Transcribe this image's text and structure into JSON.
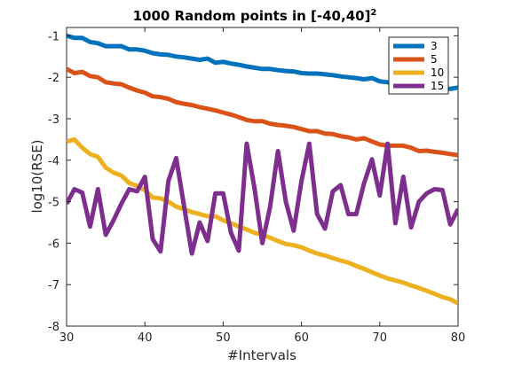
{
  "chart_data": {
    "type": "line",
    "title": "1000 Random points in [-40,40]",
    "title_superscript": "2",
    "xlabel": "#Intervals",
    "ylabel": "log10(RSE)",
    "xlim": [
      30,
      80
    ],
    "ylim": [
      -8,
      -0.8
    ],
    "xticks": [
      30,
      40,
      50,
      60,
      70,
      80
    ],
    "yticks": [
      -1,
      -2,
      -3,
      -4,
      -5,
      -6,
      -7,
      -8
    ],
    "grid": false,
    "legend_position": "top-right",
    "x": [
      30,
      31,
      32,
      33,
      34,
      35,
      36,
      37,
      38,
      39,
      40,
      41,
      42,
      43,
      44,
      45,
      46,
      47,
      48,
      49,
      50,
      51,
      52,
      53,
      54,
      55,
      56,
      57,
      58,
      59,
      60,
      61,
      62,
      63,
      64,
      65,
      66,
      67,
      68,
      69,
      70,
      71,
      72,
      73,
      74,
      75,
      76,
      77,
      78,
      79,
      80
    ],
    "series": [
      {
        "name": "3",
        "color": "#0072BD",
        "values": [
          -1.0,
          -1.05,
          -1.05,
          -1.15,
          -1.18,
          -1.25,
          -1.25,
          -1.25,
          -1.33,
          -1.33,
          -1.36,
          -1.42,
          -1.45,
          -1.46,
          -1.5,
          -1.52,
          -1.55,
          -1.58,
          -1.55,
          -1.65,
          -1.63,
          -1.67,
          -1.7,
          -1.74,
          -1.77,
          -1.8,
          -1.8,
          -1.83,
          -1.85,
          -1.86,
          -1.9,
          -1.91,
          -1.91,
          -1.93,
          -1.95,
          -1.98,
          -2.0,
          -2.02,
          -2.05,
          -2.02,
          -2.1,
          -2.12,
          -2.18,
          -2.12,
          -2.18,
          -2.2,
          -2.22,
          -2.25,
          -2.28,
          -2.28,
          -2.25
        ]
      },
      {
        "name": "5",
        "color": "#D95319",
        "values": [
          -1.8,
          -1.9,
          -1.87,
          -1.97,
          -2.0,
          -2.12,
          -2.15,
          -2.17,
          -2.25,
          -2.32,
          -2.37,
          -2.46,
          -2.48,
          -2.52,
          -2.6,
          -2.64,
          -2.67,
          -2.72,
          -2.76,
          -2.8,
          -2.85,
          -2.9,
          -2.96,
          -3.03,
          -3.06,
          -3.06,
          -3.12,
          -3.15,
          -3.17,
          -3.2,
          -3.25,
          -3.3,
          -3.3,
          -3.36,
          -3.37,
          -3.42,
          -3.45,
          -3.5,
          -3.47,
          -3.55,
          -3.62,
          -3.65,
          -3.65,
          -3.65,
          -3.7,
          -3.78,
          -3.77,
          -3.8,
          -3.82,
          -3.85,
          -3.88
        ]
      },
      {
        "name": "10",
        "color": "#EDB120",
        "values": [
          -3.55,
          -3.5,
          -3.7,
          -3.85,
          -3.92,
          -4.18,
          -4.3,
          -4.37,
          -4.55,
          -4.62,
          -4.72,
          -4.9,
          -4.92,
          -5.0,
          -5.12,
          -5.18,
          -5.25,
          -5.3,
          -5.35,
          -5.35,
          -5.45,
          -5.52,
          -5.6,
          -5.67,
          -5.75,
          -5.8,
          -5.87,
          -5.95,
          -6.02,
          -6.05,
          -6.1,
          -6.18,
          -6.25,
          -6.3,
          -6.36,
          -6.42,
          -6.47,
          -6.55,
          -6.62,
          -6.7,
          -6.78,
          -6.85,
          -6.9,
          -6.95,
          -7.02,
          -7.08,
          -7.15,
          -7.22,
          -7.3,
          -7.35,
          -7.45
        ]
      },
      {
        "name": "15",
        "color": "#7E2F8E",
        "values": [
          -5.05,
          -4.7,
          -4.78,
          -5.6,
          -4.7,
          -5.8,
          -5.45,
          -5.05,
          -4.7,
          -4.75,
          -4.4,
          -5.9,
          -6.2,
          -4.5,
          -3.95,
          -5.1,
          -6.25,
          -5.5,
          -5.95,
          -4.8,
          -4.8,
          -5.75,
          -6.18,
          -3.6,
          -4.68,
          -6.0,
          -5.12,
          -3.78,
          -5.0,
          -5.7,
          -4.5,
          -3.6,
          -5.3,
          -5.65,
          -4.75,
          -4.6,
          -5.3,
          -5.3,
          -4.55,
          -3.98,
          -4.85,
          -3.6,
          -5.52,
          -4.4,
          -5.62,
          -5.0,
          -4.8,
          -4.7,
          -4.72,
          -5.55,
          -5.18
        ]
      }
    ]
  }
}
